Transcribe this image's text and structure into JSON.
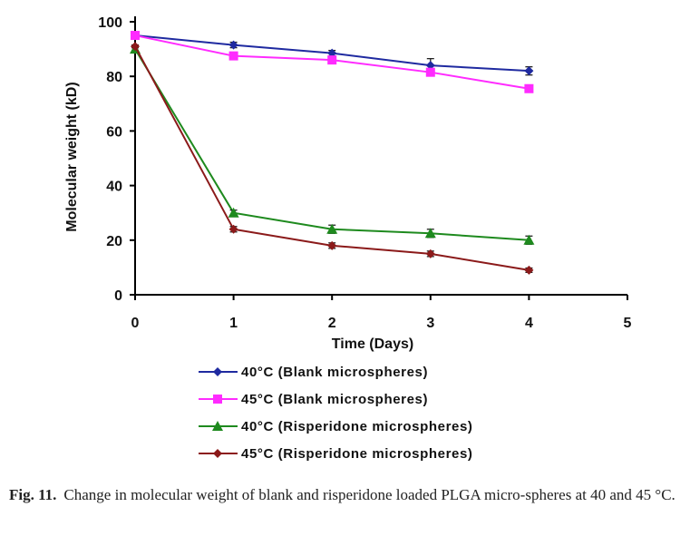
{
  "chart_data": {
    "type": "line",
    "title": "",
    "xlabel": "Time (Days)",
    "ylabel": "Molecular weight (kD)",
    "xlim": [
      0,
      5
    ],
    "ylim": [
      0,
      100
    ],
    "x_ticks": [
      "0",
      "1",
      "2",
      "3",
      "4",
      "5"
    ],
    "y_ticks": [
      "0",
      "20",
      "40",
      "60",
      "80",
      "100"
    ],
    "grid": false,
    "legend_position": "bottom",
    "x": [
      0,
      1,
      2,
      3,
      4
    ],
    "series": [
      {
        "name": "40°C (Blank microspheres)",
        "color": "#1f2aa0",
        "marker": "diamond",
        "values": [
          95,
          91.5,
          88.5,
          84,
          82
        ],
        "errors": [
          0.5,
          1,
          1,
          2.5,
          1.5
        ]
      },
      {
        "name": "45°C (Blank microspheres)",
        "color": "#ff2bff",
        "marker": "square",
        "values": [
          95,
          87.5,
          86,
          81.5,
          75.5
        ],
        "errors": [
          0.5,
          1,
          1,
          1,
          1
        ]
      },
      {
        "name": "40°C (Risperidone microspheres)",
        "color": "#1e8a1e",
        "marker": "triangle",
        "values": [
          90,
          30,
          24,
          22.5,
          20
        ],
        "errors": [
          0.5,
          1,
          1.5,
          1.5,
          1.5
        ]
      },
      {
        "name": "45°C (Risperidone microspheres)",
        "color": "#8b1a1a",
        "marker": "diamond",
        "values": [
          91,
          24,
          18,
          15,
          9
        ],
        "errors": [
          0.5,
          1,
          1,
          1,
          0.8
        ]
      }
    ]
  },
  "caption": {
    "label": "Fig. 11.",
    "text": "Change in molecular weight of blank and risperidone loaded PLGA micro-spheres at 40 and 45 °C."
  }
}
